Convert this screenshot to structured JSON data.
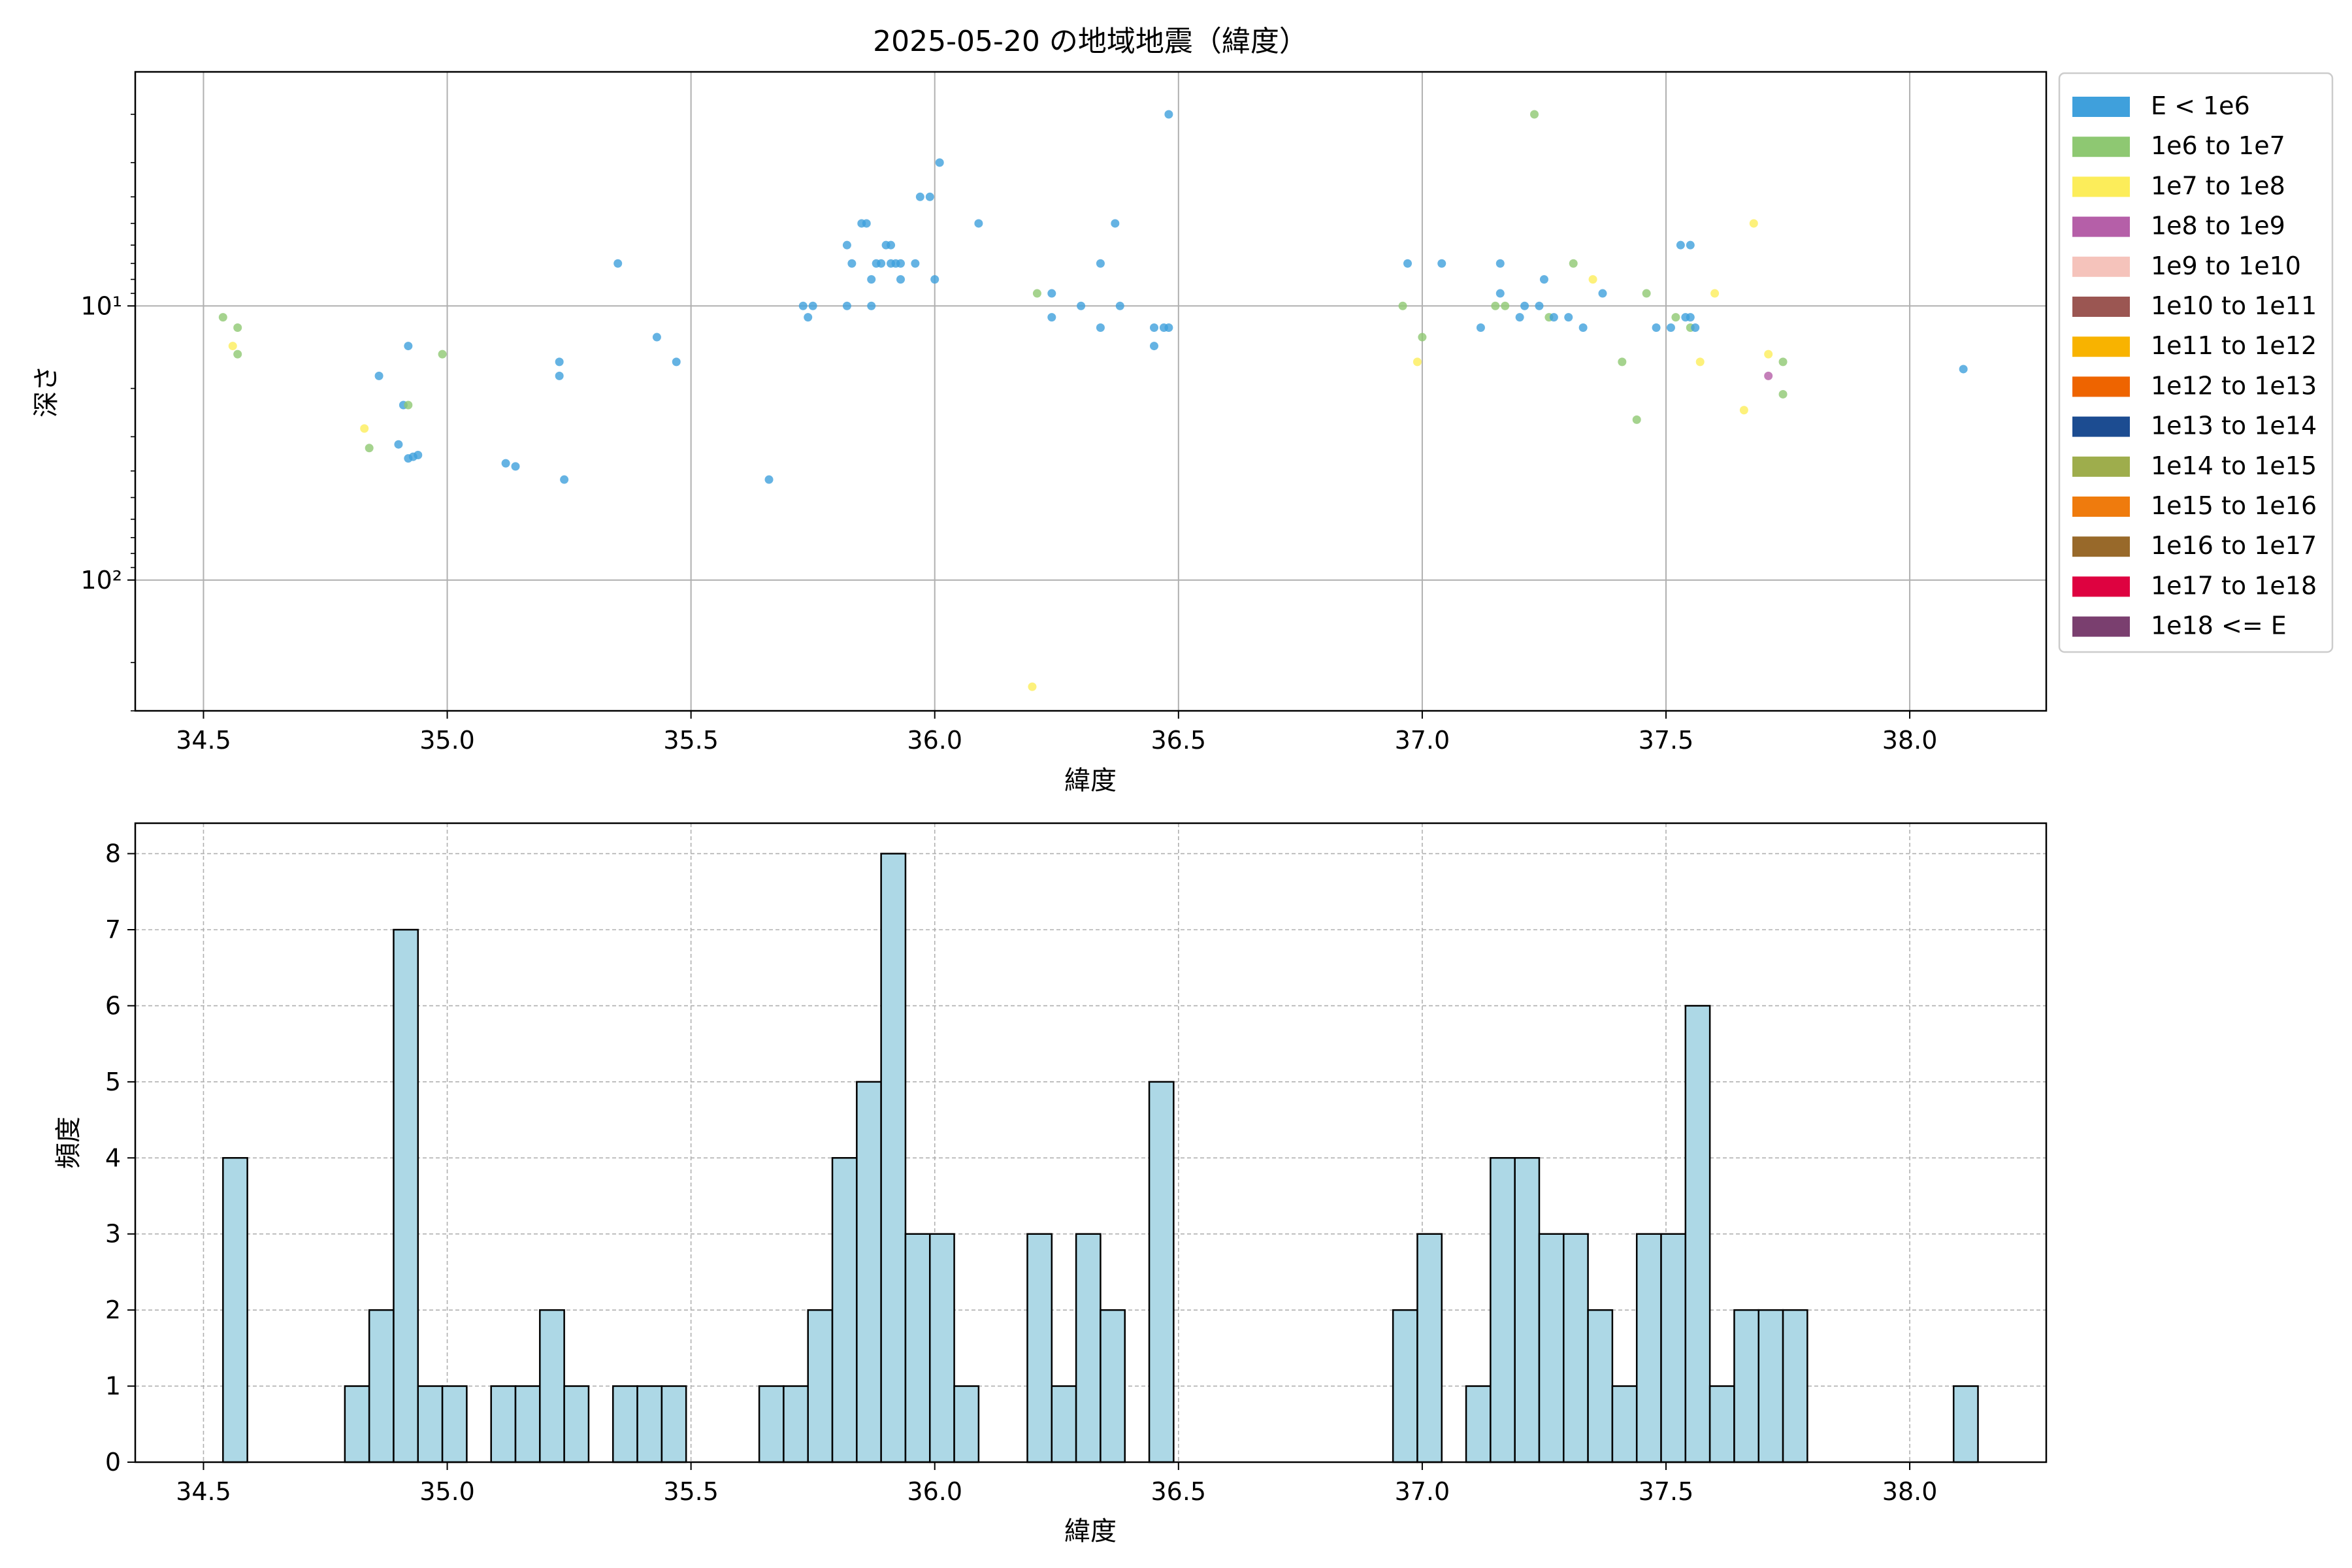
{
  "chart_data": [
    {
      "type": "scatter",
      "title": "2025-05-20 の地域地震（緯度）",
      "xlabel": "緯度",
      "ylabel": "深さ",
      "yscale": "log",
      "yaxis_inverted": true,
      "xlim": [
        34.36,
        38.28
      ],
      "ylim": [
        300,
        1.4
      ],
      "x_ticks": [
        34.5,
        35.0,
        35.5,
        36.0,
        36.5,
        37.0,
        37.5,
        38.0
      ],
      "x_tick_labels": [
        "34.5",
        "35.0",
        "35.5",
        "36.0",
        "36.5",
        "37.0",
        "37.5",
        "38.0"
      ],
      "y_ticks": [
        10,
        100
      ],
      "y_tick_labels": [
        "10¹",
        "10²"
      ],
      "grid": true,
      "legend_placement": "outside-right",
      "legend": [
        {
          "label": "E < 1e6",
          "color": "#3fa0dc"
        },
        {
          "label": "1e6 to 1e7",
          "color": "#8ec872"
        },
        {
          "label": "1e7 to 1e8",
          "color": "#fced5a"
        },
        {
          "label": "1e8 to 1e9",
          "color": "#b55fa8"
        },
        {
          "label": "1e9 to 1e10",
          "color": "#f5c3bb"
        },
        {
          "label": "1e10 to 1e11",
          "color": "#9b5652"
        },
        {
          "label": "1e11 to 1e12",
          "color": "#f8b300"
        },
        {
          "label": "1e12 to 1e13",
          "color": "#ee6400"
        },
        {
          "label": "1e13 to 1e14",
          "color": "#1c4c91"
        },
        {
          "label": "1e14 to 1e15",
          "color": "#9ead4c"
        },
        {
          "label": "1e15 to 1e16",
          "color": "#ef7b0d"
        },
        {
          "label": "1e16 to 1e17",
          "color": "#98692a"
        },
        {
          "label": "1e17 to 1e18",
          "color": "#de0240"
        },
        {
          "label": "1e18 <= E",
          "color": "#7a3f6f"
        }
      ],
      "points": [
        {
          "x": 34.54,
          "y": 11,
          "c": 1
        },
        {
          "x": 34.56,
          "y": 14,
          "c": 2
        },
        {
          "x": 34.57,
          "y": 12,
          "c": 1
        },
        {
          "x": 34.57,
          "y": 15,
          "c": 1
        },
        {
          "x": 34.83,
          "y": 28,
          "c": 2
        },
        {
          "x": 34.84,
          "y": 33,
          "c": 1
        },
        {
          "x": 34.86,
          "y": 18,
          "c": 0
        },
        {
          "x": 34.9,
          "y": 32,
          "c": 0
        },
        {
          "x": 34.91,
          "y": 23,
          "c": 0
        },
        {
          "x": 34.92,
          "y": 23,
          "c": 1
        },
        {
          "x": 34.92,
          "y": 14,
          "c": 0
        },
        {
          "x": 34.92,
          "y": 36,
          "c": 0
        },
        {
          "x": 34.93,
          "y": 35.5,
          "c": 0
        },
        {
          "x": 34.94,
          "y": 35,
          "c": 0
        },
        {
          "x": 34.99,
          "y": 15,
          "c": 1
        },
        {
          "x": 35.12,
          "y": 37.5,
          "c": 0
        },
        {
          "x": 35.14,
          "y": 38.5,
          "c": 0
        },
        {
          "x": 35.23,
          "y": 16,
          "c": 0
        },
        {
          "x": 35.23,
          "y": 18,
          "c": 0
        },
        {
          "x": 35.24,
          "y": 43,
          "c": 0
        },
        {
          "x": 35.35,
          "y": 7,
          "c": 0
        },
        {
          "x": 35.43,
          "y": 13,
          "c": 0
        },
        {
          "x": 35.47,
          "y": 16,
          "c": 0
        },
        {
          "x": 35.66,
          "y": 43,
          "c": 0
        },
        {
          "x": 35.73,
          "y": 10,
          "c": 0
        },
        {
          "x": 35.74,
          "y": 11,
          "c": 0
        },
        {
          "x": 35.75,
          "y": 10,
          "c": 0
        },
        {
          "x": 35.82,
          "y": 10,
          "c": 0
        },
        {
          "x": 35.82,
          "y": 6,
          "c": 0
        },
        {
          "x": 35.83,
          "y": 7,
          "c": 0
        },
        {
          "x": 35.85,
          "y": 5,
          "c": 0
        },
        {
          "x": 35.86,
          "y": 5,
          "c": 0
        },
        {
          "x": 35.87,
          "y": 8,
          "c": 0
        },
        {
          "x": 35.87,
          "y": 10,
          "c": 0
        },
        {
          "x": 35.88,
          "y": 7,
          "c": 0
        },
        {
          "x": 35.89,
          "y": 7,
          "c": 0
        },
        {
          "x": 35.9,
          "y": 6,
          "c": 0
        },
        {
          "x": 35.91,
          "y": 6,
          "c": 0
        },
        {
          "x": 35.91,
          "y": 7,
          "c": 0
        },
        {
          "x": 35.92,
          "y": 7,
          "c": 0
        },
        {
          "x": 35.93,
          "y": 8,
          "c": 0
        },
        {
          "x": 35.93,
          "y": 7,
          "c": 0
        },
        {
          "x": 35.96,
          "y": 7,
          "c": 0
        },
        {
          "x": 35.97,
          "y": 4,
          "c": 0
        },
        {
          "x": 35.99,
          "y": 4,
          "c": 0
        },
        {
          "x": 36.0,
          "y": 8,
          "c": 0
        },
        {
          "x": 36.01,
          "y": 3,
          "c": 0
        },
        {
          "x": 36.09,
          "y": 5,
          "c": 0
        },
        {
          "x": 36.2,
          "y": 245,
          "c": 2
        },
        {
          "x": 36.21,
          "y": 9,
          "c": 1
        },
        {
          "x": 36.24,
          "y": 11,
          "c": 0
        },
        {
          "x": 36.24,
          "y": 9,
          "c": 0
        },
        {
          "x": 36.3,
          "y": 10,
          "c": 0
        },
        {
          "x": 36.34,
          "y": 12,
          "c": 0
        },
        {
          "x": 36.34,
          "y": 7,
          "c": 0
        },
        {
          "x": 36.37,
          "y": 5,
          "c": 0
        },
        {
          "x": 36.38,
          "y": 10,
          "c": 0
        },
        {
          "x": 36.45,
          "y": 12,
          "c": 0
        },
        {
          "x": 36.45,
          "y": 14,
          "c": 0
        },
        {
          "x": 36.47,
          "y": 12,
          "c": 0
        },
        {
          "x": 36.48,
          "y": 2,
          "c": 0
        },
        {
          "x": 36.48,
          "y": 12,
          "c": 0
        },
        {
          "x": 36.96,
          "y": 10,
          "c": 1
        },
        {
          "x": 36.97,
          "y": 7,
          "c": 0
        },
        {
          "x": 36.99,
          "y": 16,
          "c": 2
        },
        {
          "x": 37.0,
          "y": 13,
          "c": 1
        },
        {
          "x": 37.04,
          "y": 7,
          "c": 0
        },
        {
          "x": 37.12,
          "y": 12,
          "c": 0
        },
        {
          "x": 37.15,
          "y": 10,
          "c": 1
        },
        {
          "x": 37.16,
          "y": 9,
          "c": 0
        },
        {
          "x": 37.16,
          "y": 7,
          "c": 0
        },
        {
          "x": 37.17,
          "y": 10,
          "c": 1
        },
        {
          "x": 37.2,
          "y": 11,
          "c": 0
        },
        {
          "x": 37.21,
          "y": 10,
          "c": 0
        },
        {
          "x": 37.23,
          "y": 2,
          "c": 1
        },
        {
          "x": 37.24,
          "y": 10,
          "c": 0
        },
        {
          "x": 37.25,
          "y": 8,
          "c": 0
        },
        {
          "x": 37.26,
          "y": 11,
          "c": 1
        },
        {
          "x": 37.27,
          "y": 11,
          "c": 0
        },
        {
          "x": 37.3,
          "y": 11,
          "c": 0
        },
        {
          "x": 37.31,
          "y": 7,
          "c": 1
        },
        {
          "x": 37.33,
          "y": 12,
          "c": 0
        },
        {
          "x": 37.35,
          "y": 8,
          "c": 2
        },
        {
          "x": 37.37,
          "y": 9,
          "c": 0
        },
        {
          "x": 37.41,
          "y": 16,
          "c": 1
        },
        {
          "x": 37.44,
          "y": 26,
          "c": 1
        },
        {
          "x": 37.46,
          "y": 9,
          "c": 1
        },
        {
          "x": 37.48,
          "y": 12,
          "c": 0
        },
        {
          "x": 37.51,
          "y": 12,
          "c": 0
        },
        {
          "x": 37.52,
          "y": 11,
          "c": 1
        },
        {
          "x": 37.53,
          "y": 6,
          "c": 0
        },
        {
          "x": 37.54,
          "y": 11,
          "c": 0
        },
        {
          "x": 37.55,
          "y": 12,
          "c": 1
        },
        {
          "x": 37.55,
          "y": 6,
          "c": 0
        },
        {
          "x": 37.55,
          "y": 11,
          "c": 0
        },
        {
          "x": 37.56,
          "y": 12,
          "c": 0
        },
        {
          "x": 37.57,
          "y": 16,
          "c": 2
        },
        {
          "x": 37.6,
          "y": 9,
          "c": 2
        },
        {
          "x": 37.66,
          "y": 24,
          "c": 2
        },
        {
          "x": 37.68,
          "y": 5,
          "c": 2
        },
        {
          "x": 37.71,
          "y": 18,
          "c": 3
        },
        {
          "x": 37.71,
          "y": 15,
          "c": 2
        },
        {
          "x": 37.74,
          "y": 16,
          "c": 1
        },
        {
          "x": 37.74,
          "y": 21,
          "c": 1
        },
        {
          "x": 38.11,
          "y": 17,
          "c": 0
        }
      ]
    },
    {
      "type": "bar",
      "title": "",
      "xlabel": "緯度",
      "ylabel": "頻度",
      "xlim": [
        34.36,
        38.28
      ],
      "ylim": [
        0,
        8.4
      ],
      "x_ticks": [
        34.5,
        35.0,
        35.5,
        36.0,
        36.5,
        37.0,
        37.5,
        38.0
      ],
      "x_tick_labels": [
        "34.5",
        "35.0",
        "35.5",
        "36.0",
        "36.5",
        "37.0",
        "37.5",
        "38.0"
      ],
      "y_ticks": [
        0,
        1,
        2,
        3,
        4,
        5,
        6,
        7,
        8
      ],
      "y_tick_labels": [
        "0",
        "1",
        "2",
        "3",
        "4",
        "5",
        "6",
        "7",
        "8"
      ],
      "grid": true,
      "bar_color": "#add8e6",
      "bin_width": 0.05,
      "bins": [
        {
          "x0": 34.54,
          "count": 4
        },
        {
          "x0": 34.79,
          "count": 1
        },
        {
          "x0": 34.84,
          "count": 2
        },
        {
          "x0": 34.89,
          "count": 7
        },
        {
          "x0": 34.94,
          "count": 1
        },
        {
          "x0": 34.99,
          "count": 1
        },
        {
          "x0": 35.09,
          "count": 1
        },
        {
          "x0": 35.14,
          "count": 1
        },
        {
          "x0": 35.19,
          "count": 2
        },
        {
          "x0": 35.24,
          "count": 1
        },
        {
          "x0": 35.34,
          "count": 1
        },
        {
          "x0": 35.39,
          "count": 1
        },
        {
          "x0": 35.44,
          "count": 1
        },
        {
          "x0": 35.64,
          "count": 1
        },
        {
          "x0": 35.69,
          "count": 1
        },
        {
          "x0": 35.74,
          "count": 2
        },
        {
          "x0": 35.79,
          "count": 4
        },
        {
          "x0": 35.84,
          "count": 5
        },
        {
          "x0": 35.89,
          "count": 8
        },
        {
          "x0": 35.94,
          "count": 3
        },
        {
          "x0": 35.99,
          "count": 3
        },
        {
          "x0": 36.04,
          "count": 1
        },
        {
          "x0": 36.19,
          "count": 3
        },
        {
          "x0": 36.24,
          "count": 1
        },
        {
          "x0": 36.29,
          "count": 3
        },
        {
          "x0": 36.34,
          "count": 2
        },
        {
          "x0": 36.44,
          "count": 5
        },
        {
          "x0": 36.94,
          "count": 2
        },
        {
          "x0": 36.99,
          "count": 3
        },
        {
          "x0": 37.09,
          "count": 1
        },
        {
          "x0": 37.14,
          "count": 4
        },
        {
          "x0": 37.19,
          "count": 4
        },
        {
          "x0": 37.24,
          "count": 3
        },
        {
          "x0": 37.29,
          "count": 3
        },
        {
          "x0": 37.34,
          "count": 2
        },
        {
          "x0": 37.39,
          "count": 1
        },
        {
          "x0": 37.44,
          "count": 3
        },
        {
          "x0": 37.49,
          "count": 3
        },
        {
          "x0": 37.54,
          "count": 6
        },
        {
          "x0": 37.59,
          "count": 1
        },
        {
          "x0": 37.64,
          "count": 2
        },
        {
          "x0": 37.69,
          "count": 2
        },
        {
          "x0": 37.74,
          "count": 2
        },
        {
          "x0": 38.09,
          "count": 1
        }
      ]
    }
  ]
}
